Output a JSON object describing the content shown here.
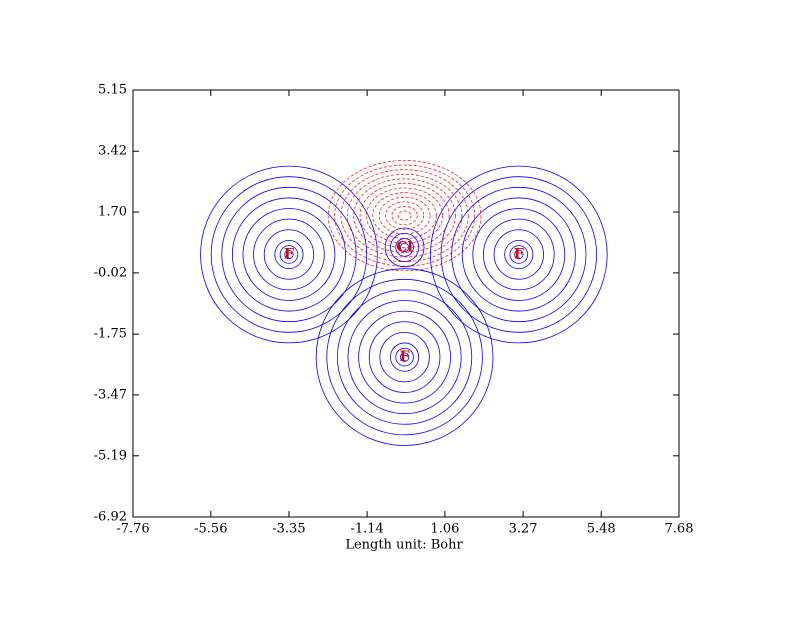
{
  "chart_data": {
    "type": "contour",
    "xlabel": "Length unit: Bohr",
    "xlim": [
      -7.76,
      7.68
    ],
    "ylim": [
      -6.92,
      5.15
    ],
    "xticks": [
      -7.76,
      -5.56,
      -3.35,
      -1.14,
      1.06,
      3.27,
      5.48,
      7.68
    ],
    "yticks": [
      5.15,
      3.42,
      {
        "value": 1.7,
        "label": "1.70"
      },
      -0.02,
      -1.75,
      -3.47,
      -5.19,
      -6.92
    ],
    "atoms": [
      {
        "label": "F",
        "x": -3.35,
        "y": 0.5
      },
      {
        "label": "Cl",
        "x": -0.08,
        "y": 0.7
      },
      {
        "label": "F",
        "x": 3.15,
        "y": 0.5
      },
      {
        "label": "F",
        "x": -0.08,
        "y": -2.4
      }
    ]
  }
}
